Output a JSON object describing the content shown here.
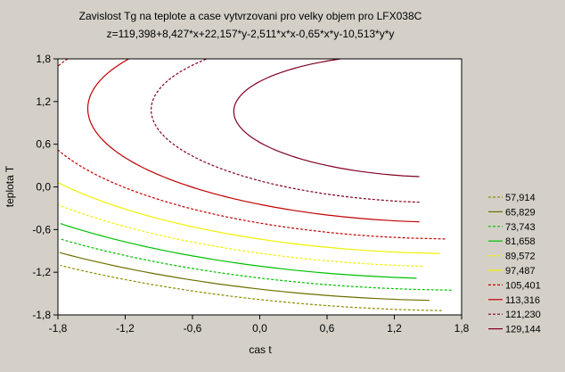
{
  "chart_data": {
    "type": "contour",
    "title": "Zavislost Tg na teplote a case vytvrzovani pro velky objem pro LFX038C",
    "subtitle": "z=119,398+8,427*x+22,157*y-2,511*x*x-0,65*x*y-10,513*y*y",
    "xlabel": "cas t",
    "ylabel": "teplota T",
    "xlim": [
      -1.8,
      1.8
    ],
    "ylim": [
      -1.8,
      1.8
    ],
    "x_ticks": [
      "-1,8",
      "-1,2",
      "-0,6",
      "0,0",
      "0,6",
      "1,2",
      "1,8"
    ],
    "y_ticks": [
      "1,8",
      "1,2",
      "0,6",
      "0,0",
      "-0,6",
      "-1,2",
      "-1,8"
    ],
    "grid": false,
    "legend_position": "right",
    "surface": {
      "intercept": 119.398,
      "x": 8.427,
      "y": 22.157,
      "xx": -2.511,
      "xy": -0.65,
      "yy": -10.513
    },
    "levels": [
      {
        "value": 57.914,
        "label": "57,914",
        "color": "#8c8c00",
        "dash": "dashed"
      },
      {
        "value": 65.829,
        "label": "65,829",
        "color": "#6e6e00",
        "dash": "solid"
      },
      {
        "value": 73.743,
        "label": "73,743",
        "color": "#00c000",
        "dash": "dashed"
      },
      {
        "value": 81.658,
        "label": "81,658",
        "color": "#00c000",
        "dash": "solid"
      },
      {
        "value": 89.572,
        "label": "89,572",
        "color": "#f0f000",
        "dash": "dashed"
      },
      {
        "value": 97.487,
        "label": "97,487",
        "color": "#f0f000",
        "dash": "solid"
      },
      {
        "value": 105.401,
        "label": "105,401",
        "color": "#c00000",
        "dash": "dashed"
      },
      {
        "value": 113.316,
        "label": "113,316",
        "color": "#c00000",
        "dash": "solid"
      },
      {
        "value": 121.23,
        "label": "121,230",
        "color": "#800020",
        "dash": "dashed"
      },
      {
        "value": 129.144,
        "label": "129,144",
        "color": "#800020",
        "dash": "solid"
      }
    ]
  }
}
